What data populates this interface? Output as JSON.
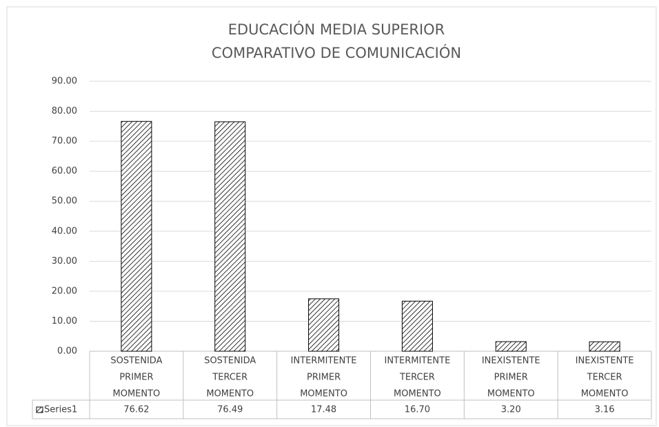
{
  "chart_data": {
    "type": "bar",
    "title": [
      "EDUCACIÓN MEDIA SUPERIOR",
      "COMPARATIVO DE COMUNICACIÓN"
    ],
    "categories": [
      [
        "SOSTENIDA",
        "PRIMER",
        "MOMENTO"
      ],
      [
        "SOSTENIDA",
        "TERCER",
        "MOMENTO"
      ],
      [
        "INTERMITENTE",
        "PRIMER",
        "MOMENTO"
      ],
      [
        "INTERMITENTE",
        "TERCER",
        "MOMENTO"
      ],
      [
        "INEXISTENTE",
        "PRIMER",
        "MOMENTO"
      ],
      [
        "INEXISTENTE",
        "TERCER",
        "MOMENTO"
      ]
    ],
    "series": [
      {
        "name": "Series1",
        "color": "#000000",
        "values": [
          76.62,
          76.49,
          17.48,
          16.7,
          3.2,
          3.16
        ],
        "value_labels": [
          "76.62",
          "76.49",
          "17.48",
          "16.70",
          "3.20",
          "3.16"
        ]
      }
    ],
    "ylim": [
      0,
      90
    ],
    "yticks": [
      {
        "value": 0,
        "label": "0.00"
      },
      {
        "value": 10,
        "label": "10.00"
      },
      {
        "value": 20,
        "label": "20.00"
      },
      {
        "value": 30,
        "label": "30.00"
      },
      {
        "value": 40,
        "label": "40.00"
      },
      {
        "value": 50,
        "label": "50.00"
      },
      {
        "value": 60,
        "label": "60.00"
      },
      {
        "value": 70,
        "label": "70.00"
      },
      {
        "value": 80,
        "label": "80.00"
      },
      {
        "value": 90,
        "label": "90.00"
      }
    ],
    "grid": true,
    "pattern": "hatch"
  }
}
